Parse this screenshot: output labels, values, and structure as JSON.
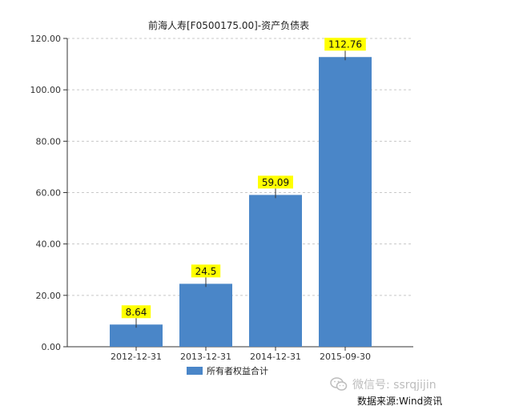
{
  "chart_data": {
    "type": "bar",
    "title": "前海人寿[F0500175.00]-资产负债表",
    "categories": [
      "2012-12-31",
      "2013-12-31",
      "2014-12-31",
      "2015-09-30"
    ],
    "series": [
      {
        "name": "所有者权益合计",
        "values": [
          8.64,
          24.5,
          59.09,
          112.76
        ],
        "labels": [
          "8.64",
          "24.5",
          "59.09",
          "112.76"
        ]
      }
    ],
    "ylim": [
      0,
      120
    ],
    "yticks": [
      "0.00",
      "20.00",
      "40.00",
      "60.00",
      "80.00",
      "100.00",
      "120.00"
    ],
    "grid": true,
    "legend_position": "bottom",
    "colors": {
      "bar": "#4a86c8",
      "label_bg": "#ffff00",
      "grid": "#c8c8c8"
    }
  },
  "watermark": {
    "text": "微信号: ssrqjijin",
    "icon": "wechat-icon"
  },
  "source": "数据来源:Wind资讯"
}
